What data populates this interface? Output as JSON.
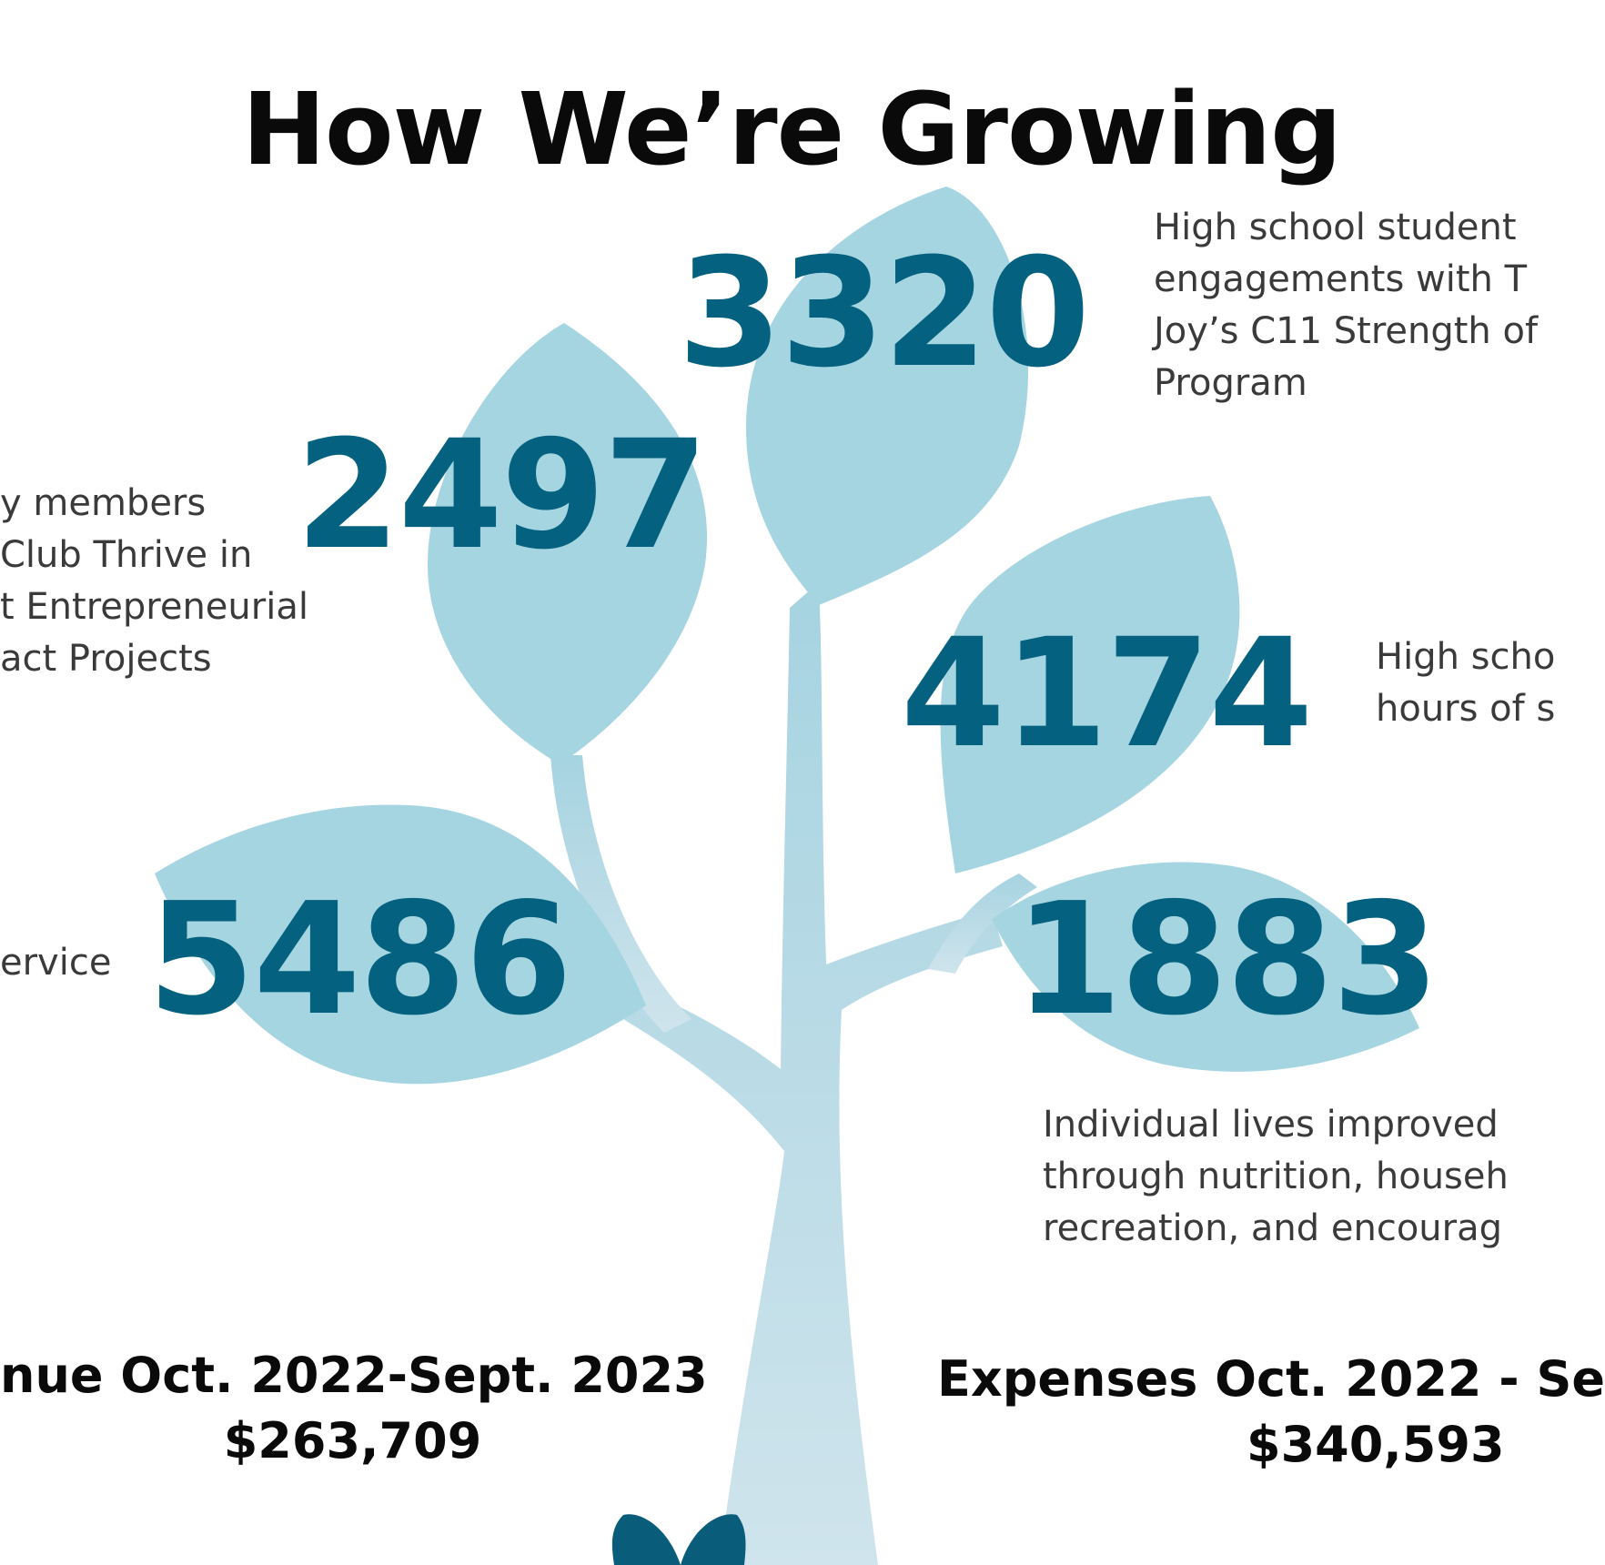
{
  "title": "How We’re Growing",
  "stats": {
    "s3320": {
      "value": "3320",
      "lines": [
        "High school student",
        "engagements with T",
        "Joy’s C11 Strength of",
        "Program"
      ]
    },
    "s2497": {
      "value": "2497",
      "lines": [
        "y members",
        "Club Thrive in",
        "t Entrepreneurial",
        "act Projects"
      ]
    },
    "s4174": {
      "value": "4174",
      "lines": [
        "High scho",
        "hours of s"
      ]
    },
    "s5486": {
      "value": "5486",
      "lines": [
        "ervice"
      ]
    },
    "s1883": {
      "value": "1883",
      "lines": [
        "Individual lives improved",
        "through nutrition, househ",
        "recreation, and encourag"
      ]
    }
  },
  "revenue": {
    "label": "nue Oct. 2022-Sept. 2023",
    "amount": "$263,709"
  },
  "expenses": {
    "label": "Expenses Oct. 2022 - Se",
    "amount": "$340,593"
  },
  "colors": {
    "leaf": "#a6d5e2",
    "trunk": "#b4d6e2",
    "number": "#04617f",
    "sprout": "#0a5d7a"
  }
}
